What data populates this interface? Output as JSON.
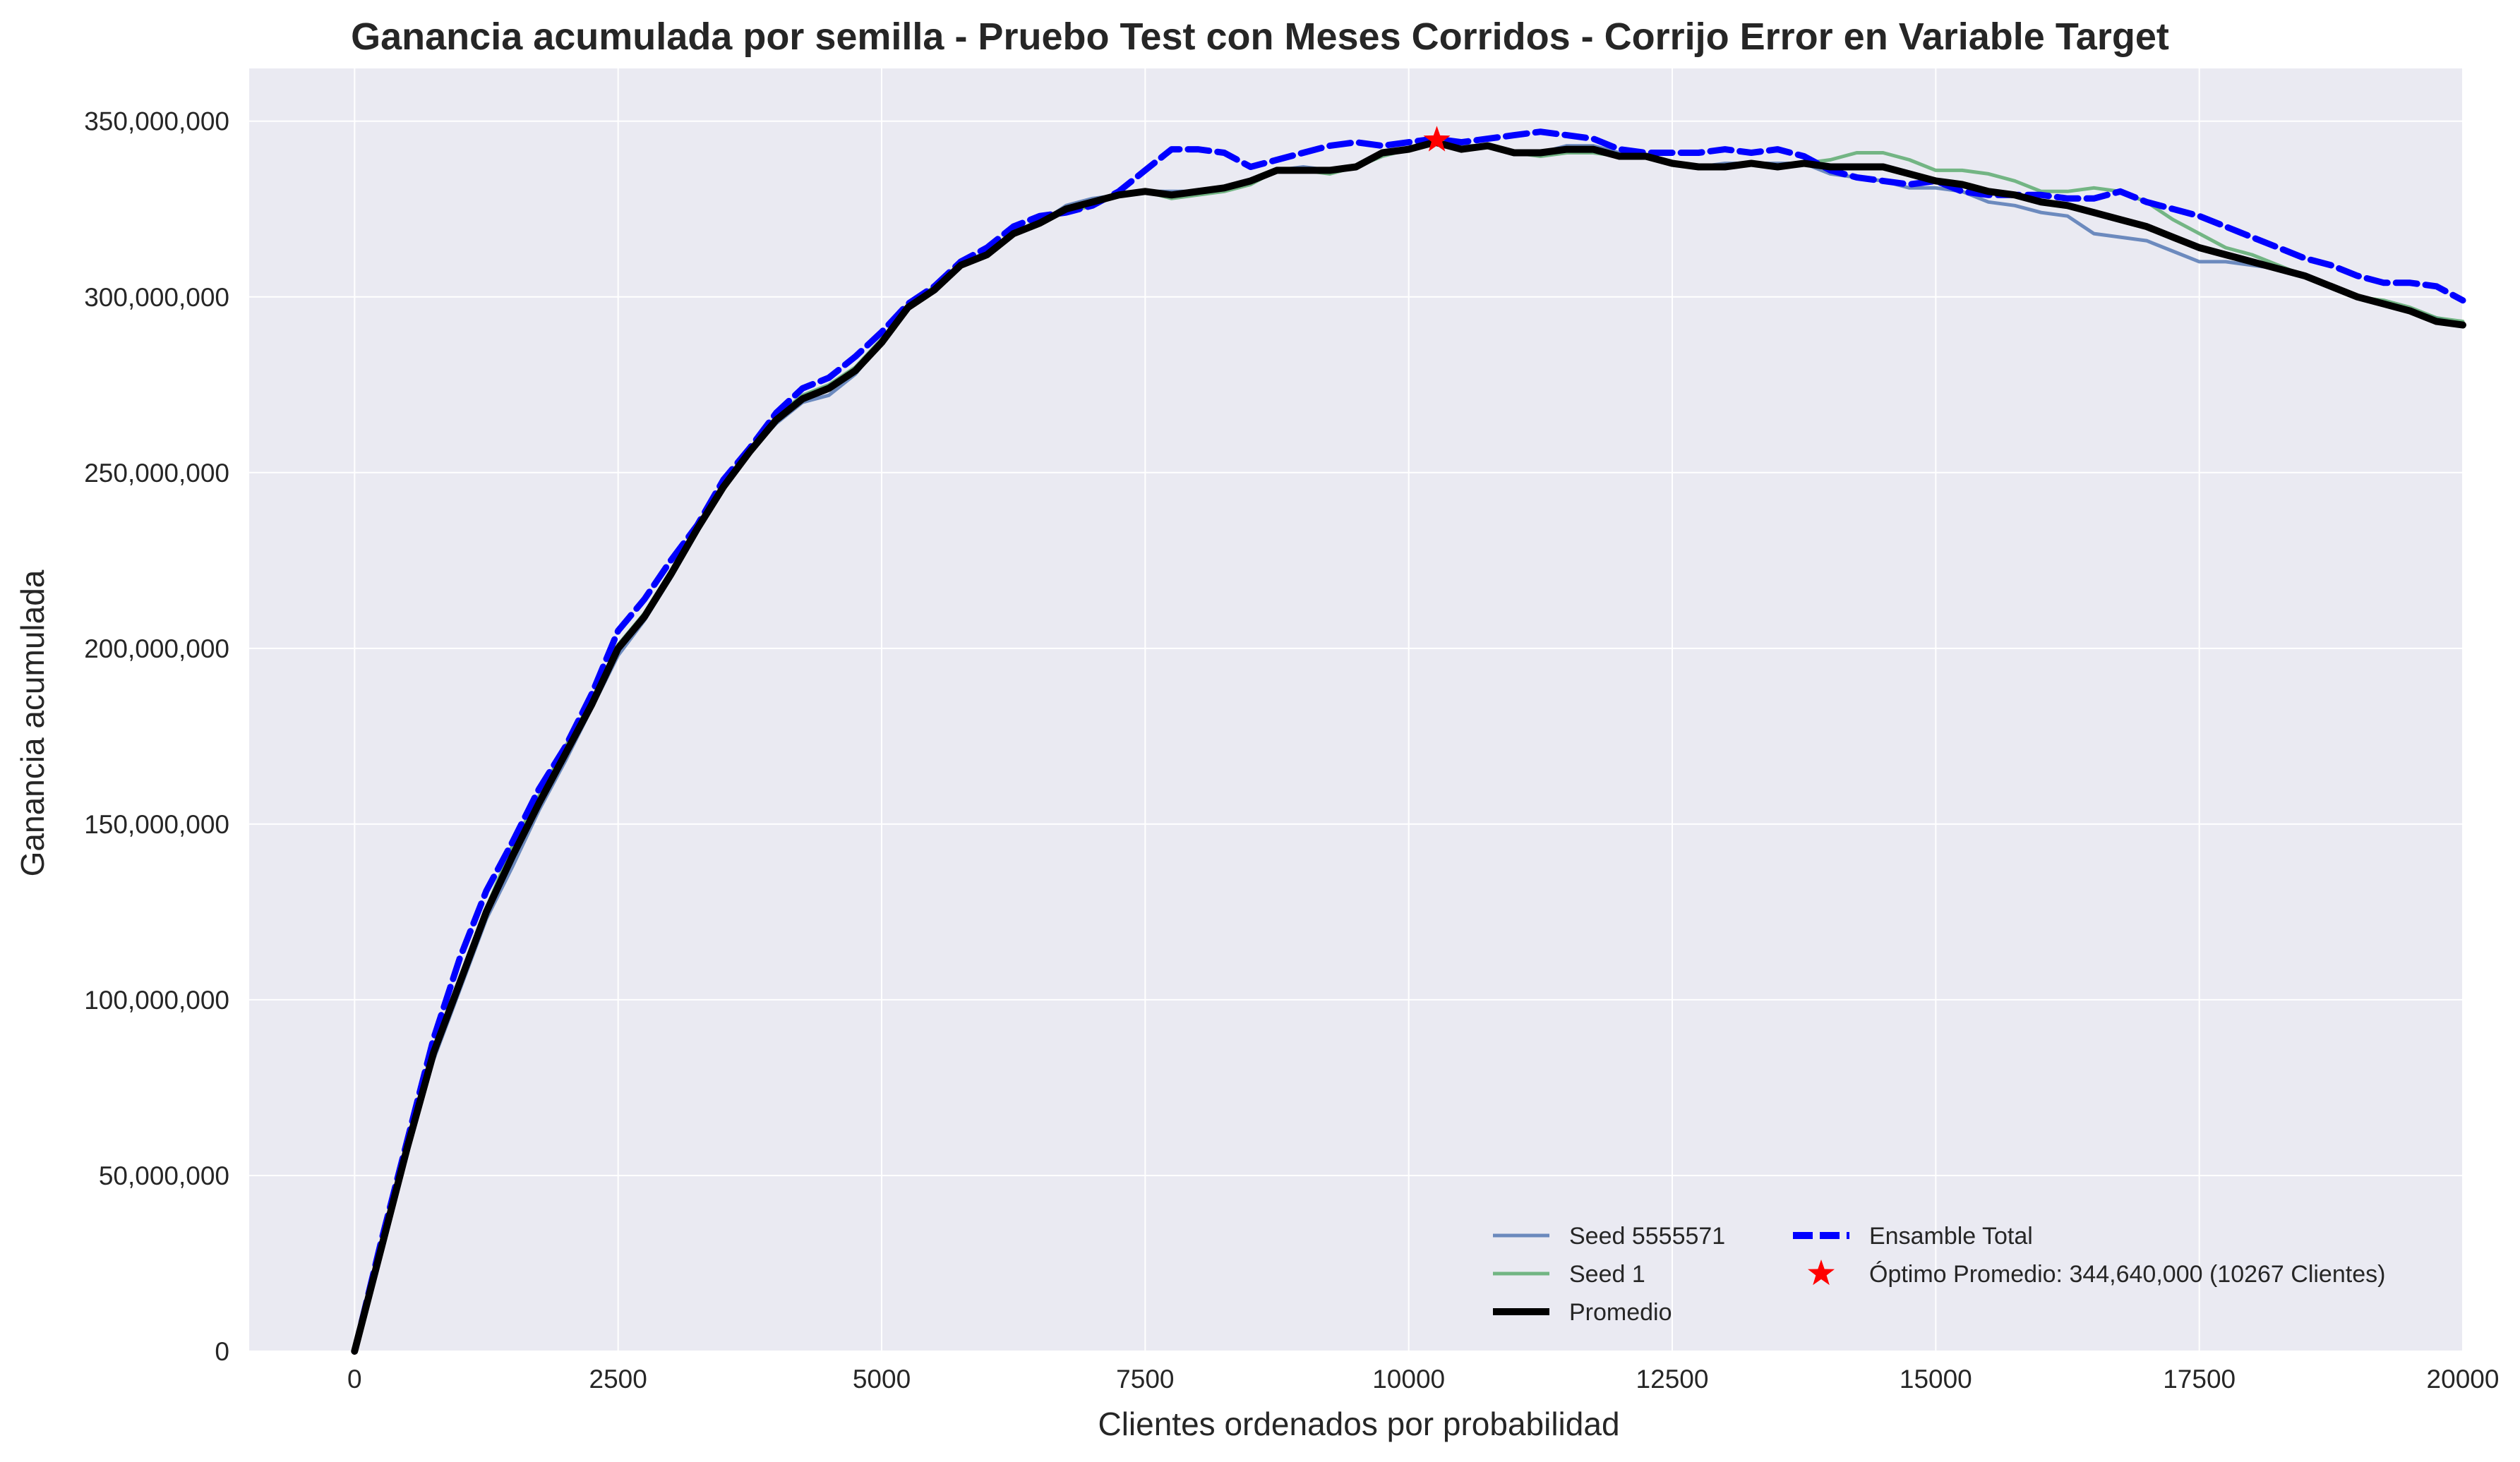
{
  "chart_data": {
    "type": "line",
    "title": "Ganancia acumulada por semilla - Pruebo Test con Meses Corridos - Corrijo Error en Variable Target",
    "xlabel": "Clientes ordenados por probabilidad",
    "ylabel": "Ganancia acumulada",
    "xlim": [
      -1000,
      20000
    ],
    "ylim": [
      0,
      365000000
    ],
    "xticks": [
      0,
      2500,
      5000,
      7500,
      10000,
      12500,
      15000,
      17500,
      20000
    ],
    "xtick_labels": [
      "0",
      "2500",
      "5000",
      "7500",
      "10000",
      "12500",
      "15000",
      "17500",
      "20000"
    ],
    "yticks": [
      0,
      50000000,
      100000000,
      150000000,
      200000000,
      250000000,
      300000000,
      350000000
    ],
    "ytick_labels": [
      "0",
      "50,000,000",
      "100,000,000",
      "150,000,000",
      "200,000,000",
      "250,000,000",
      "300,000,000",
      "350,000,000"
    ],
    "grid": true,
    "legend_position": "bottom-right",
    "background_color": "#EAEAF2",
    "series": [
      {
        "name": "Seed 5555571",
        "color": "#4C72B0",
        "style": "solid",
        "x": [
          0,
          250,
          500,
          750,
          1000,
          1250,
          1500,
          1750,
          2000,
          2250,
          2500,
          2750,
          3000,
          3250,
          3500,
          3750,
          4000,
          4250,
          4500,
          4750,
          5000,
          5250,
          5500,
          5750,
          6000,
          6250,
          6500,
          6750,
          7000,
          7250,
          7500,
          7750,
          8000,
          8250,
          8500,
          8750,
          9000,
          9250,
          9500,
          9750,
          10000,
          10250,
          10500,
          10750,
          11000,
          11250,
          11500,
          11750,
          12000,
          12250,
          12500,
          12750,
          13000,
          13250,
          13500,
          13750,
          14000,
          14250,
          14500,
          14750,
          15000,
          15250,
          15500,
          15750,
          16000,
          16250,
          16500,
          16750,
          17000,
          17250,
          17500,
          17750,
          18000,
          18250,
          18500,
          18750,
          19000,
          19250,
          19500,
          19750,
          20000
        ],
        "values": [
          0,
          28000000,
          57000000,
          83000000,
          103000000,
          123000000,
          138000000,
          154000000,
          168000000,
          183000000,
          198000000,
          208000000,
          220000000,
          233000000,
          246000000,
          256000000,
          264000000,
          270000000,
          272000000,
          278000000,
          287000000,
          297000000,
          302000000,
          309000000,
          313000000,
          318000000,
          321000000,
          326000000,
          328000000,
          329000000,
          330000000,
          330000000,
          330000000,
          331000000,
          333000000,
          336000000,
          337000000,
          336000000,
          337000000,
          341000000,
          342000000,
          344000000,
          343000000,
          343000000,
          341000000,
          341000000,
          343000000,
          343000000,
          341000000,
          340000000,
          338000000,
          337000000,
          338000000,
          338000000,
          338000000,
          338000000,
          335000000,
          334000000,
          333000000,
          331000000,
          331000000,
          330000000,
          327000000,
          326000000,
          324000000,
          323000000,
          318000000,
          317000000,
          316000000,
          313000000,
          310000000,
          310000000,
          309000000,
          308000000,
          306000000,
          303000000,
          300000000,
          298000000,
          296000000,
          294000000,
          292000000
        ]
      },
      {
        "name": "Seed 1",
        "color": "#55A868",
        "style": "solid",
        "x": [
          0,
          250,
          500,
          750,
          1000,
          1250,
          1500,
          1750,
          2000,
          2250,
          2500,
          2750,
          3000,
          3250,
          3500,
          3750,
          4000,
          4250,
          4500,
          4750,
          5000,
          5250,
          5500,
          5750,
          6000,
          6250,
          6500,
          6750,
          7000,
          7250,
          7500,
          7750,
          8000,
          8250,
          8500,
          8750,
          9000,
          9250,
          9500,
          9750,
          10000,
          10250,
          10500,
          10750,
          11000,
          11250,
          11500,
          11750,
          12000,
          12250,
          12500,
          12750,
          13000,
          13250,
          13500,
          13750,
          14000,
          14250,
          14500,
          14750,
          15000,
          15250,
          15500,
          15750,
          16000,
          16250,
          16500,
          16750,
          17000,
          17250,
          17500,
          17750,
          18000,
          18250,
          18500,
          18750,
          19000,
          19250,
          19500,
          19750,
          20000
        ],
        "values": [
          0,
          30000000,
          59000000,
          86000000,
          106000000,
          126000000,
          144000000,
          158000000,
          172000000,
          185000000,
          201000000,
          210000000,
          222000000,
          235000000,
          246000000,
          256000000,
          266000000,
          272000000,
          275000000,
          280000000,
          288000000,
          297000000,
          303000000,
          309000000,
          312000000,
          318000000,
          322000000,
          324000000,
          326000000,
          329000000,
          330000000,
          328000000,
          329000000,
          330000000,
          332000000,
          336000000,
          336000000,
          335000000,
          337000000,
          340000000,
          342000000,
          344000000,
          342000000,
          343000000,
          341000000,
          340000000,
          341000000,
          341000000,
          340000000,
          340000000,
          338000000,
          337000000,
          337000000,
          338000000,
          337000000,
          338000000,
          339000000,
          341000000,
          341000000,
          339000000,
          336000000,
          336000000,
          335000000,
          333000000,
          330000000,
          330000000,
          331000000,
          330000000,
          327000000,
          322000000,
          318000000,
          314000000,
          312000000,
          309000000,
          306000000,
          303000000,
          300000000,
          299000000,
          297000000,
          294000000,
          293000000
        ]
      },
      {
        "name": "Promedio",
        "color": "#000000",
        "style": "solid-thick",
        "x": [
          0,
          250,
          500,
          750,
          1000,
          1250,
          1500,
          1750,
          2000,
          2250,
          2500,
          2750,
          3000,
          3250,
          3500,
          3750,
          4000,
          4250,
          4500,
          4750,
          5000,
          5250,
          5500,
          5750,
          6000,
          6250,
          6500,
          6750,
          7000,
          7250,
          7500,
          7750,
          8000,
          8250,
          8500,
          8750,
          9000,
          9250,
          9500,
          9750,
          10000,
          10250,
          10500,
          10750,
          11000,
          11250,
          11500,
          11750,
          12000,
          12250,
          12500,
          12750,
          13000,
          13250,
          13500,
          13750,
          14000,
          14250,
          14500,
          14750,
          15000,
          15250,
          15500,
          15750,
          16000,
          16250,
          16500,
          16750,
          17000,
          17250,
          17500,
          17750,
          18000,
          18250,
          18500,
          18750,
          19000,
          19250,
          19500,
          19750,
          20000
        ],
        "values": [
          0,
          29000000,
          58000000,
          85000000,
          105000000,
          125000000,
          141000000,
          156000000,
          170000000,
          184000000,
          200000000,
          209000000,
          221000000,
          234000000,
          246000000,
          256000000,
          265000000,
          271000000,
          274000000,
          279000000,
          287000000,
          297000000,
          302000000,
          309000000,
          312000000,
          318000000,
          321000000,
          325000000,
          327000000,
          329000000,
          330000000,
          329000000,
          330000000,
          331000000,
          333000000,
          336000000,
          336000000,
          336000000,
          337000000,
          341000000,
          342000000,
          344000000,
          342000000,
          343000000,
          341000000,
          341000000,
          342000000,
          342000000,
          340000000,
          340000000,
          338000000,
          337000000,
          337000000,
          338000000,
          337000000,
          338000000,
          337000000,
          337000000,
          337000000,
          335000000,
          333000000,
          332000000,
          330000000,
          329000000,
          327000000,
          326000000,
          324000000,
          322000000,
          320000000,
          317000000,
          314000000,
          312000000,
          310000000,
          308000000,
          306000000,
          303000000,
          300000000,
          298000000,
          296000000,
          293000000,
          292000000
        ]
      },
      {
        "name": "Ensamble Total",
        "color": "#0000FF",
        "style": "dashed",
        "x": [
          0,
          250,
          500,
          750,
          1000,
          1250,
          1500,
          1750,
          2000,
          2250,
          2500,
          2750,
          3000,
          3250,
          3500,
          3750,
          4000,
          4250,
          4500,
          4750,
          5000,
          5250,
          5500,
          5750,
          6000,
          6250,
          6500,
          6750,
          7000,
          7250,
          7500,
          7750,
          8000,
          8250,
          8500,
          8750,
          9000,
          9250,
          9500,
          9750,
          10000,
          10250,
          10500,
          10750,
          11000,
          11250,
          11500,
          11750,
          12000,
          12250,
          12500,
          12750,
          13000,
          13250,
          13500,
          13750,
          14000,
          14250,
          14500,
          14750,
          15000,
          15250,
          15500,
          15750,
          16000,
          16250,
          16500,
          16750,
          17000,
          17250,
          17500,
          17750,
          18000,
          18250,
          18500,
          18750,
          19000,
          19250,
          19500,
          19750,
          20000
        ],
        "values": [
          0,
          31000000,
          60000000,
          89000000,
          112000000,
          131000000,
          145000000,
          160000000,
          172000000,
          187000000,
          205000000,
          214000000,
          225000000,
          235000000,
          248000000,
          257000000,
          267000000,
          274000000,
          277000000,
          283000000,
          290000000,
          298000000,
          303000000,
          310000000,
          314000000,
          320000000,
          323000000,
          324000000,
          326000000,
          330000000,
          336000000,
          342000000,
          342000000,
          341000000,
          337000000,
          339000000,
          341000000,
          343000000,
          344000000,
          343000000,
          344000000,
          345000000,
          344000000,
          345000000,
          346000000,
          347000000,
          346000000,
          345000000,
          342000000,
          341000000,
          341000000,
          341000000,
          342000000,
          341000000,
          342000000,
          340000000,
          336000000,
          334000000,
          333000000,
          332000000,
          333000000,
          330000000,
          329000000,
          329000000,
          329000000,
          328000000,
          328000000,
          330000000,
          327000000,
          325000000,
          323000000,
          320000000,
          317000000,
          314000000,
          311000000,
          309000000,
          306000000,
          304000000,
          304000000,
          303000000,
          299000000
        ]
      }
    ],
    "annotations": [
      {
        "type": "star-marker",
        "x": 10267,
        "y": 344640000,
        "color": "#FF0000",
        "label": "Óptimo Promedio: 344,640,000 (10267 Clientes)"
      }
    ],
    "legend": {
      "column1": [
        "Seed 5555571",
        "Seed 1",
        "Promedio"
      ],
      "column2": [
        "Ensamble Total",
        "Óptimo Promedio: 344,640,000 (10267 Clientes)"
      ]
    }
  }
}
